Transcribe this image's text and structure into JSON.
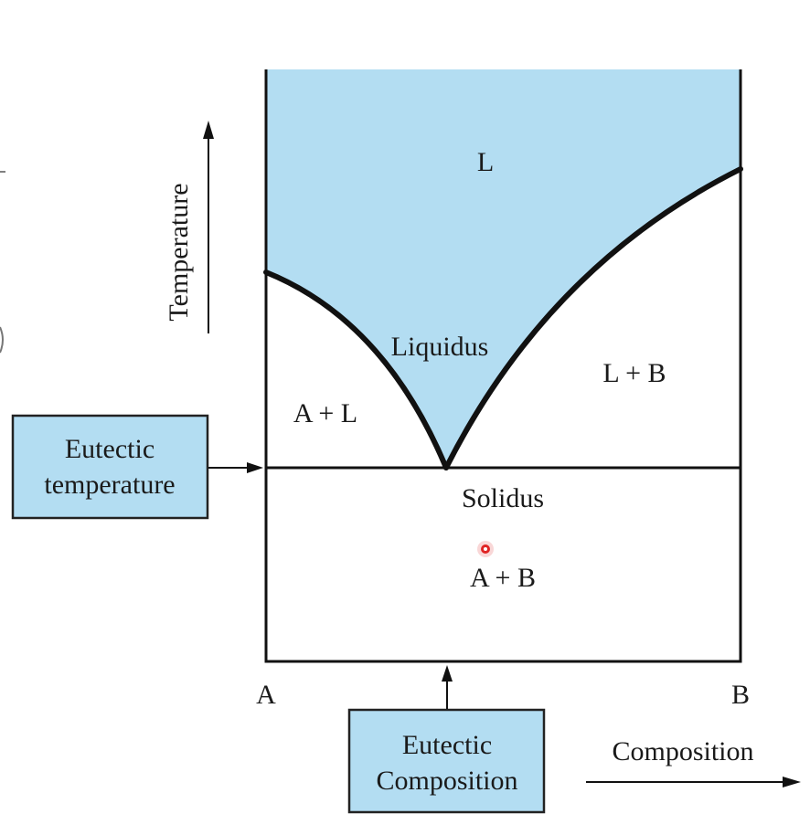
{
  "diagram": {
    "region_labels": {
      "liquid": "L",
      "liquid_plus_a": "A + L",
      "liquid_plus_b": "L + B",
      "solid_a_plus_b": "A + B"
    },
    "line_labels": {
      "liquidus": "Liquidus",
      "solidus": "Solidus"
    },
    "axis": {
      "temperature": "Temperature",
      "composition": "Composition",
      "left_component": "A",
      "right_component": "B"
    },
    "callouts": {
      "eutectic_temperature": [
        "Eutectic",
        "temperature"
      ],
      "eutectic_composition": [
        "Eutectic",
        "Composition"
      ]
    },
    "colors": {
      "liquid_fill": "#b3ddf2",
      "box_fill": "#b3ddf2",
      "line": "#111111",
      "cursor": "#e02424"
    }
  }
}
